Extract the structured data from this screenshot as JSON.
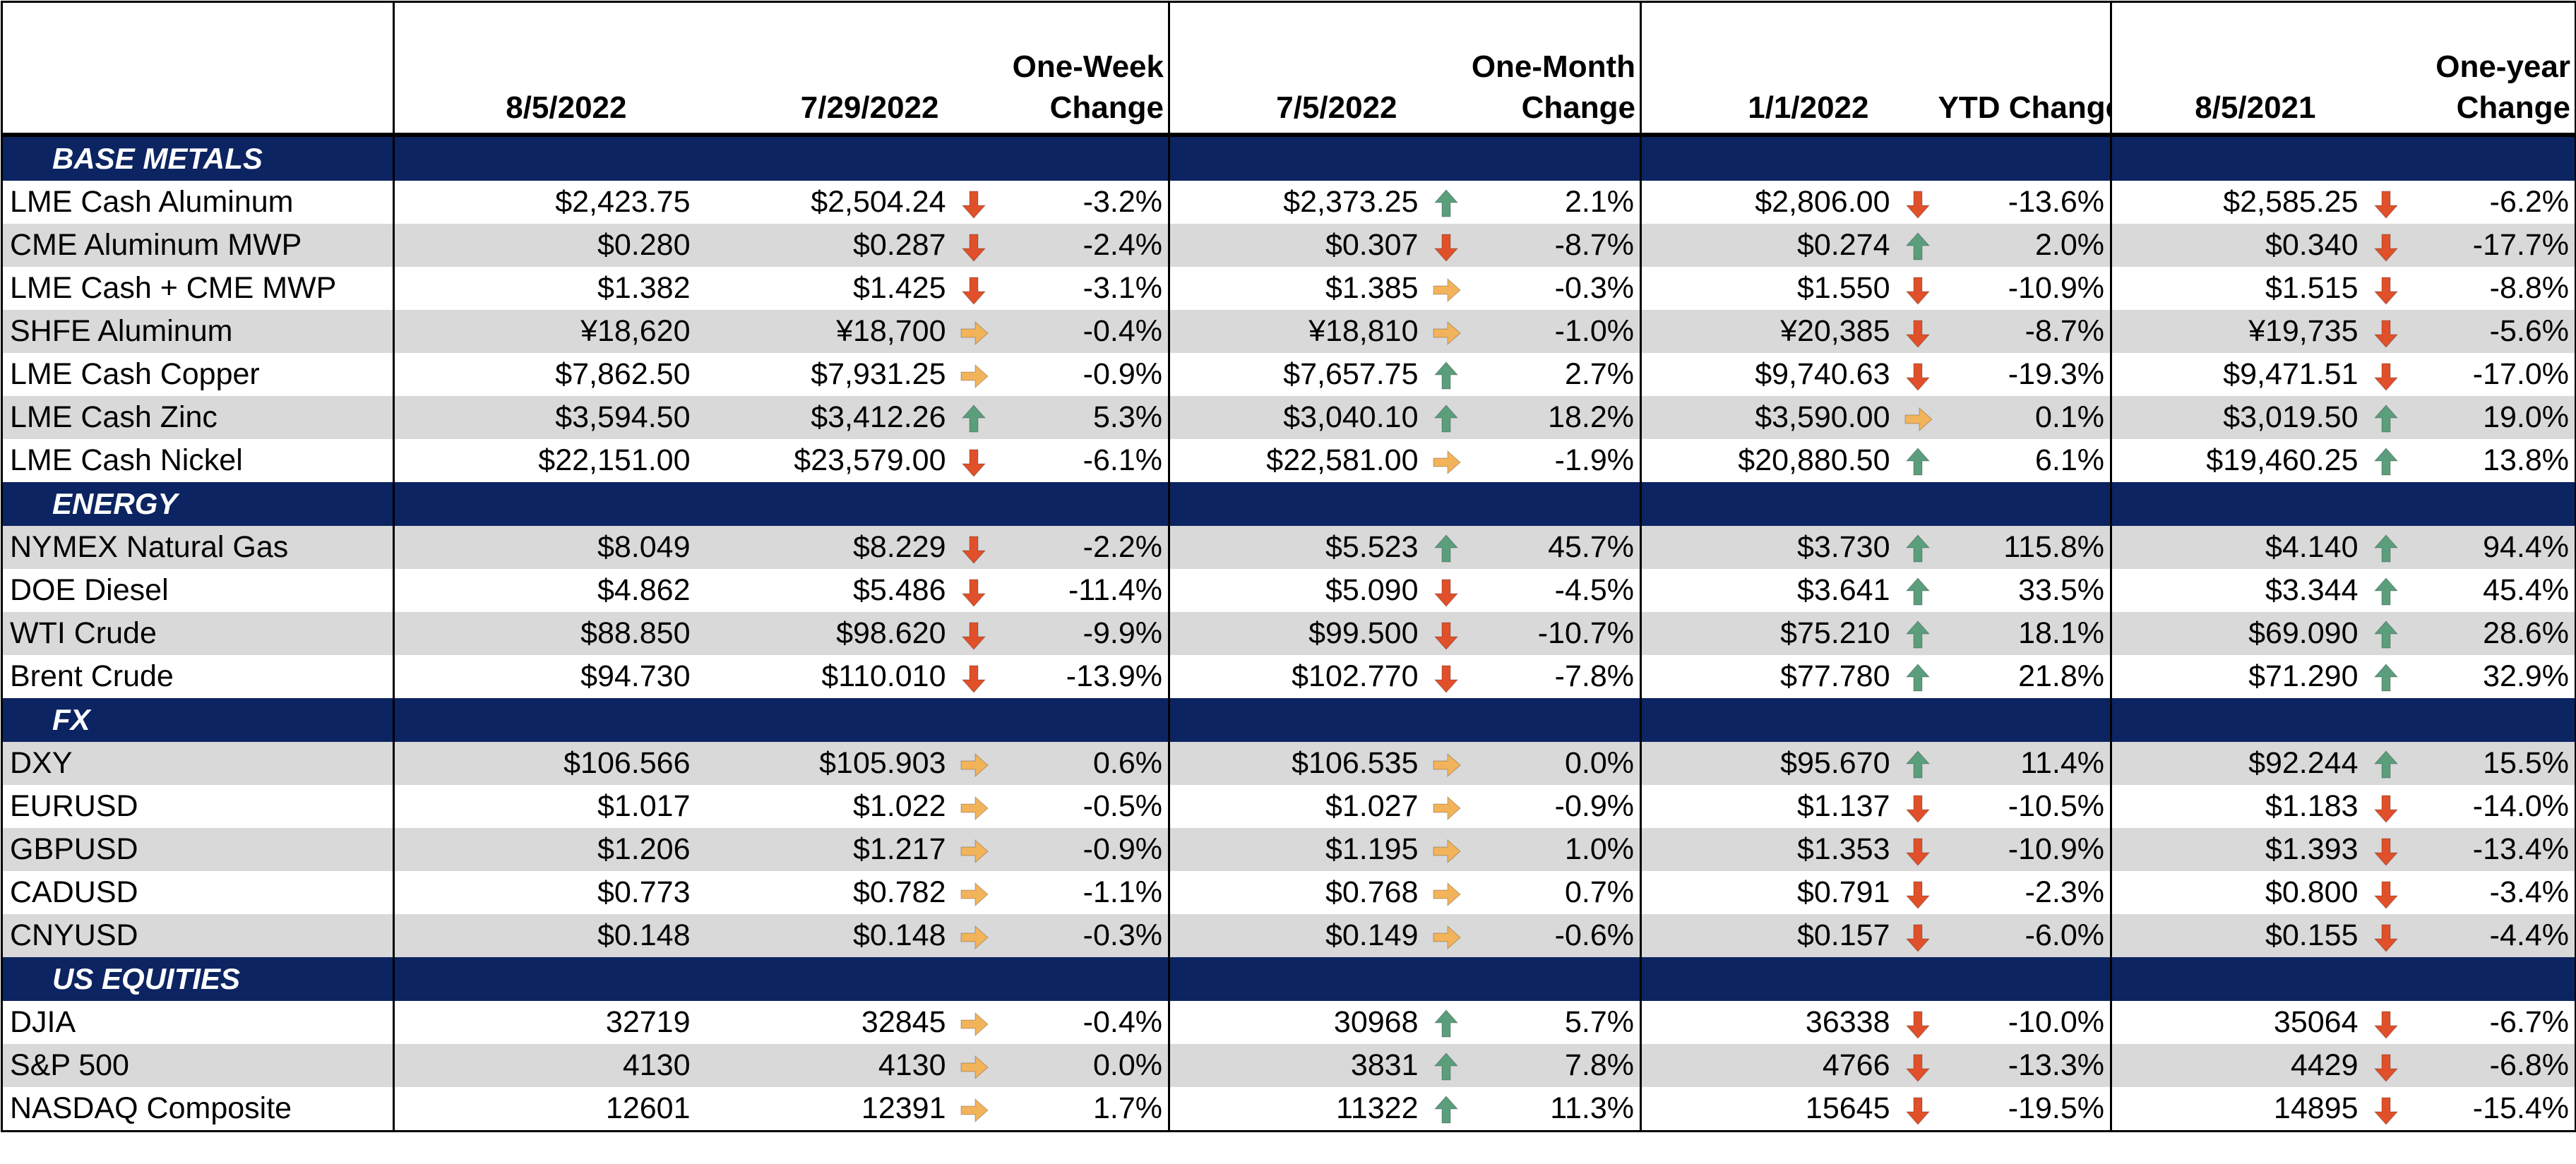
{
  "header": {
    "c1": "8/5/2022",
    "c2": "7/29/2022",
    "c3": [
      "One-Week",
      "Change"
    ],
    "c4": "7/5/2022",
    "c5": [
      "One-Month",
      "Change"
    ],
    "c6": "1/1/2022",
    "c7": "YTD Change",
    "c8": "8/5/2021",
    "c9": [
      "One-year",
      "Change"
    ]
  },
  "arrow_colors": {
    "down": "#e0502a",
    "up": "#5b9e7c",
    "flat": "#f2b35a"
  },
  "sections": [
    {
      "title": "BASE METALS",
      "rows": [
        {
          "name": "LME Cash Aluminum",
          "v0": "$2,423.75",
          "v1": "$2,504.24",
          "a1": "down",
          "c1": "-3.2%",
          "v2": "$2,373.25",
          "a2": "up",
          "c2": "2.1%",
          "v3": "$2,806.00",
          "a3": "down",
          "c3": "-13.6%",
          "v4": "$2,585.25",
          "a4": "down",
          "c4": "-6.2%"
        },
        {
          "name": "CME Aluminum MWP",
          "v0": "$0.280",
          "v1": "$0.287",
          "a1": "down",
          "c1": "-2.4%",
          "v2": "$0.307",
          "a2": "down",
          "c2": "-8.7%",
          "v3": "$0.274",
          "a3": "up",
          "c3": "2.0%",
          "v4": "$0.340",
          "a4": "down",
          "c4": "-17.7%"
        },
        {
          "name": "LME Cash + CME MWP",
          "v0": "$1.382",
          "v1": "$1.425",
          "a1": "down",
          "c1": "-3.1%",
          "v2": "$1.385",
          "a2": "flat",
          "c2": "-0.3%",
          "v3": "$1.550",
          "a3": "down",
          "c3": "-10.9%",
          "v4": "$1.515",
          "a4": "down",
          "c4": "-8.8%"
        },
        {
          "name": "SHFE Aluminum",
          "v0": "¥18,620",
          "v1": "¥18,700",
          "a1": "flat",
          "c1": "-0.4%",
          "v2": "¥18,810",
          "a2": "flat",
          "c2": "-1.0%",
          "v3": "¥20,385",
          "a3": "down",
          "c3": "-8.7%",
          "v4": "¥19,735",
          "a4": "down",
          "c4": "-5.6%"
        },
        {
          "name": "LME Cash Copper",
          "v0": "$7,862.50",
          "v1": "$7,931.25",
          "a1": "flat",
          "c1": "-0.9%",
          "v2": "$7,657.75",
          "a2": "up",
          "c2": "2.7%",
          "v3": "$9,740.63",
          "a3": "down",
          "c3": "-19.3%",
          "v4": "$9,471.51",
          "a4": "down",
          "c4": "-17.0%"
        },
        {
          "name": "LME Cash Zinc",
          "v0": "$3,594.50",
          "v1": "$3,412.26",
          "a1": "up",
          "c1": "5.3%",
          "v2": "$3,040.10",
          "a2": "up",
          "c2": "18.2%",
          "v3": "$3,590.00",
          "a3": "flat",
          "c3": "0.1%",
          "v4": "$3,019.50",
          "a4": "up",
          "c4": "19.0%"
        },
        {
          "name": "LME Cash Nickel",
          "v0": "$22,151.00",
          "v1": "$23,579.00",
          "a1": "down",
          "c1": "-6.1%",
          "v2": "$22,581.00",
          "a2": "flat",
          "c2": "-1.9%",
          "v3": "$20,880.50",
          "a3": "up",
          "c3": "6.1%",
          "v4": "$19,460.25",
          "a4": "up",
          "c4": "13.8%"
        }
      ]
    },
    {
      "title": "ENERGY",
      "rows": [
        {
          "name": "NYMEX Natural Gas",
          "v0": "$8.049",
          "v1": "$8.229",
          "a1": "down",
          "c1": "-2.2%",
          "v2": "$5.523",
          "a2": "up",
          "c2": "45.7%",
          "v3": "$3.730",
          "a3": "up",
          "c3": "115.8%",
          "v4": "$4.140",
          "a4": "up",
          "c4": "94.4%"
        },
        {
          "name": "DOE Diesel",
          "v0": "$4.862",
          "v1": "$5.486",
          "a1": "down",
          "c1": "-11.4%",
          "v2": "$5.090",
          "a2": "down",
          "c2": "-4.5%",
          "v3": "$3.641",
          "a3": "up",
          "c3": "33.5%",
          "v4": "$3.344",
          "a4": "up",
          "c4": "45.4%"
        },
        {
          "name": "WTI Crude",
          "v0": "$88.850",
          "v1": "$98.620",
          "a1": "down",
          "c1": "-9.9%",
          "v2": "$99.500",
          "a2": "down",
          "c2": "-10.7%",
          "v3": "$75.210",
          "a3": "up",
          "c3": "18.1%",
          "v4": "$69.090",
          "a4": "up",
          "c4": "28.6%"
        },
        {
          "name": "Brent Crude",
          "v0": "$94.730",
          "v1": "$110.010",
          "a1": "down",
          "c1": "-13.9%",
          "v2": "$102.770",
          "a2": "down",
          "c2": "-7.8%",
          "v3": "$77.780",
          "a3": "up",
          "c3": "21.8%",
          "v4": "$71.290",
          "a4": "up",
          "c4": "32.9%"
        }
      ]
    },
    {
      "title": "FX",
      "rows": [
        {
          "name": "DXY",
          "v0": "$106.566",
          "v1": "$105.903",
          "a1": "flat",
          "c1": "0.6%",
          "v2": "$106.535",
          "a2": "flat",
          "c2": "0.0%",
          "v3": "$95.670",
          "a3": "up",
          "c3": "11.4%",
          "v4": "$92.244",
          "a4": "up",
          "c4": "15.5%"
        },
        {
          "name": "EURUSD",
          "v0": "$1.017",
          "v1": "$1.022",
          "a1": "flat",
          "c1": "-0.5%",
          "v2": "$1.027",
          "a2": "flat",
          "c2": "-0.9%",
          "v3": "$1.137",
          "a3": "down",
          "c3": "-10.5%",
          "v4": "$1.183",
          "a4": "down",
          "c4": "-14.0%"
        },
        {
          "name": "GBPUSD",
          "v0": "$1.206",
          "v1": "$1.217",
          "a1": "flat",
          "c1": "-0.9%",
          "v2": "$1.195",
          "a2": "flat",
          "c2": "1.0%",
          "v3": "$1.353",
          "a3": "down",
          "c3": "-10.9%",
          "v4": "$1.393",
          "a4": "down",
          "c4": "-13.4%"
        },
        {
          "name": "CADUSD",
          "v0": "$0.773",
          "v1": "$0.782",
          "a1": "flat",
          "c1": "-1.1%",
          "v2": "$0.768",
          "a2": "flat",
          "c2": "0.7%",
          "v3": "$0.791",
          "a3": "down",
          "c3": "-2.3%",
          "v4": "$0.800",
          "a4": "down",
          "c4": "-3.4%"
        },
        {
          "name": "CNYUSD",
          "v0": "$0.148",
          "v1": "$0.148",
          "a1": "flat",
          "c1": "-0.3%",
          "v2": "$0.149",
          "a2": "flat",
          "c2": "-0.6%",
          "v3": "$0.157",
          "a3": "down",
          "c3": "-6.0%",
          "v4": "$0.155",
          "a4": "down",
          "c4": "-4.4%"
        }
      ]
    },
    {
      "title": "US EQUITIES",
      "rows": [
        {
          "name": "DJIA",
          "v0": "32719",
          "v1": "32845",
          "a1": "flat",
          "c1": "-0.4%",
          "v2": "30968",
          "a2": "up",
          "c2": "5.7%",
          "v3": "36338",
          "a3": "down",
          "c3": "-10.0%",
          "v4": "35064",
          "a4": "down",
          "c4": "-6.7%"
        },
        {
          "name": "S&P 500",
          "v0": "4130",
          "v1": "4130",
          "a1": "flat",
          "c1": "0.0%",
          "v2": "3831",
          "a2": "up",
          "c2": "7.8%",
          "v3": "4766",
          "a3": "down",
          "c3": "-13.3%",
          "v4": "4429",
          "a4": "down",
          "c4": "-6.8%"
        },
        {
          "name": "NASDAQ Composite",
          "v0": "12601",
          "v1": "12391",
          "a1": "flat",
          "c1": "1.7%",
          "v2": "11322",
          "a2": "up",
          "c2": "11.3%",
          "v3": "15645",
          "a3": "down",
          "c3": "-19.5%",
          "v4": "14895",
          "a4": "down",
          "c4": "-15.4%"
        }
      ]
    }
  ]
}
